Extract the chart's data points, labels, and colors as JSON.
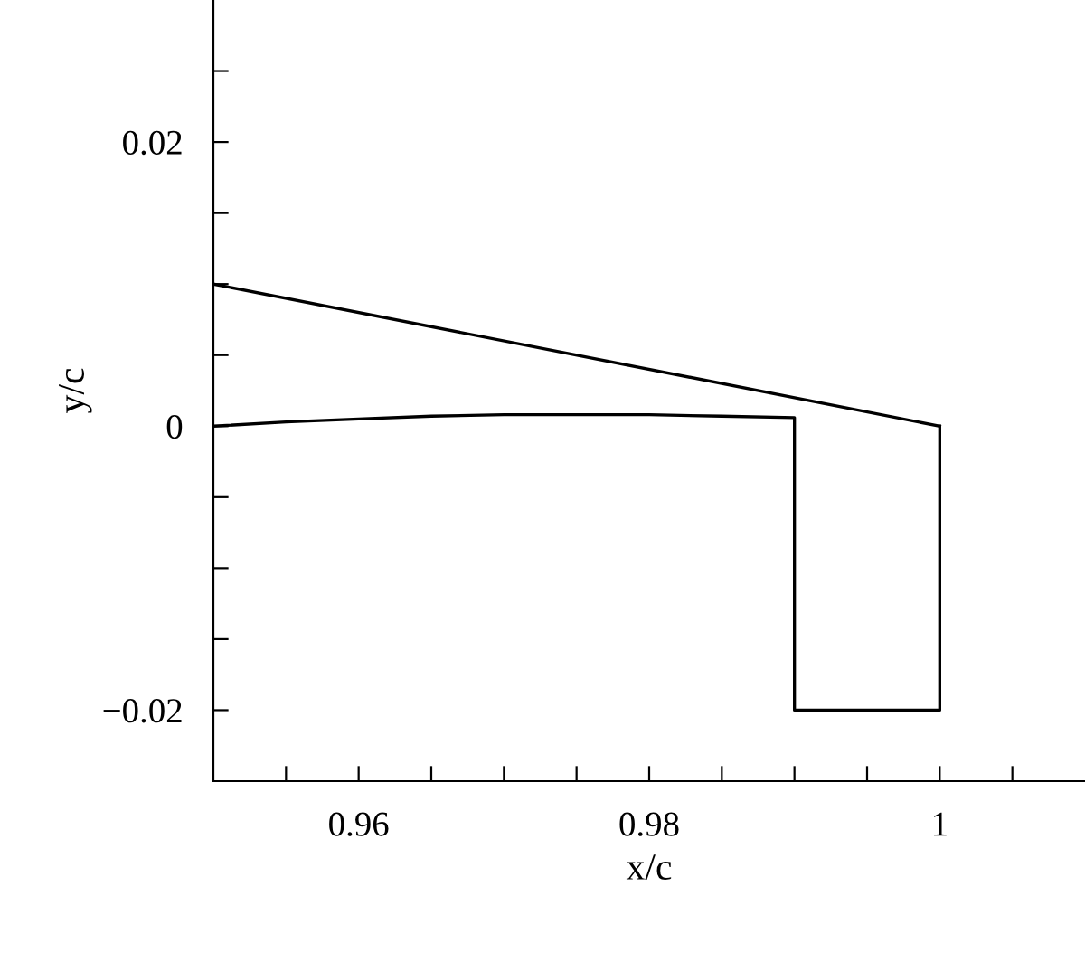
{
  "chart_data": {
    "type": "line",
    "xlabel": "x/c",
    "ylabel": "y/c",
    "series": [
      {
        "color": "#000000",
        "x": [
          0.95,
          1.0
        ],
        "values": [
          0.01,
          0.0
        ]
      },
      {
        "color": "#000000",
        "x": [
          0.95,
          0.955,
          0.96,
          0.965,
          0.97,
          0.975,
          0.98,
          0.985,
          0.99,
          0.99,
          1.0,
          1.0
        ],
        "values": [
          0.0,
          0.0003,
          0.0005,
          0.0007,
          0.0008,
          0.0008,
          0.0008,
          0.0007,
          0.0006,
          -0.02,
          -0.02,
          0.0
        ]
      }
    ],
    "xlim": [
      0.95,
      1.01
    ],
    "xticks": [
      {
        "value": 0.955,
        "label": null
      },
      0.96,
      {
        "value": 0.965,
        "label": null
      },
      {
        "value": 0.97,
        "label": null
      },
      {
        "value": 0.975,
        "label": null
      },
      0.98,
      {
        "value": 0.985,
        "label": null
      },
      {
        "value": 0.99,
        "label": null
      },
      {
        "value": 0.995,
        "label": null
      },
      {
        "value": 1,
        "label": "1"
      },
      {
        "value": 1.005,
        "label": null
      }
    ],
    "ylim": [
      -0.025,
      0.03
    ],
    "yticks": [
      {
        "value": -0.02,
        "label": "−0.02"
      },
      {
        "value": -0.015,
        "label": null
      },
      {
        "value": -0.01,
        "label": null
      },
      {
        "value": -0.005,
        "label": null
      },
      0,
      {
        "value": 0.005,
        "label": null
      },
      {
        "value": 0.01,
        "label": null
      },
      {
        "value": 0.015,
        "label": null
      },
      0.02,
      {
        "value": 0.025,
        "label": null
      }
    ],
    "grid": false,
    "legend": false,
    "marker": "none",
    "line_style": "solid"
  }
}
